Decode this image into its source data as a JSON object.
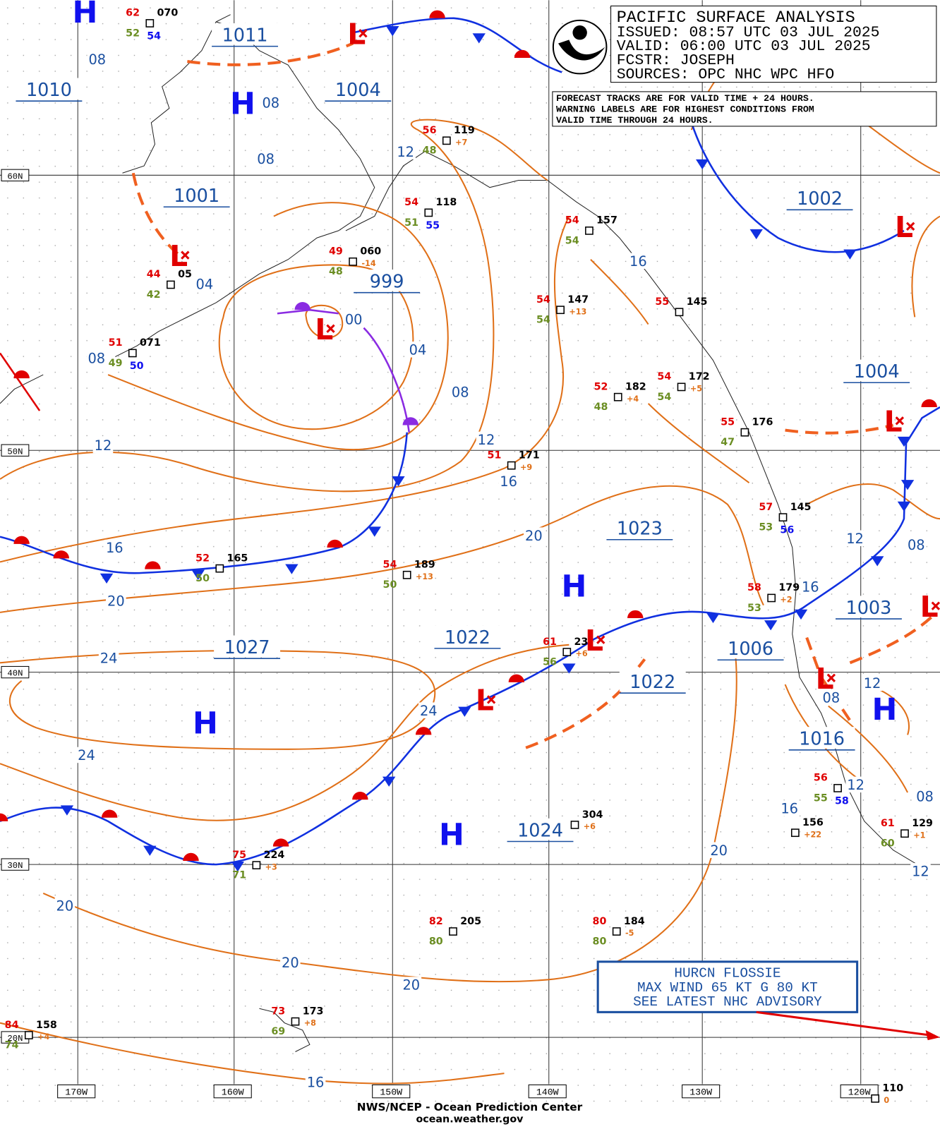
{
  "header": {
    "title": "PACIFIC SURFACE ANALYSIS",
    "lines": [
      "ISSUED: 08:57 UTC 03 JUL 2025",
      "VALID:  06:00 UTC 03 JUL 2025",
      "FCSTR:  JOSEPH",
      "SOURCES: OPC NHC WPC HFO"
    ]
  },
  "notice": [
    "FORECAST TRACKS ARE FOR VALID TIME + 24 HOURS.",
    "WARNING LABELS ARE FOR HIGHEST CONDITIONS FROM",
    "VALID TIME THROUGH 24 HOURS."
  ],
  "symbols": {
    "high": "H",
    "low": "L"
  },
  "pressure_centers": [
    "1011",
    "1010",
    "1004",
    "1001",
    "999",
    "1002",
    "1004",
    "1023",
    "1003",
    "1022",
    "1027",
    "1006",
    "1022",
    "1016",
    "1024"
  ],
  "isobar_labels": [
    "08",
    "08",
    "08",
    "12",
    "04",
    "00",
    "04",
    "08",
    "08",
    "12",
    "12",
    "16",
    "16",
    "16",
    "20",
    "20",
    "24",
    "24",
    "24",
    "12",
    "08",
    "16",
    "12",
    "08",
    "12",
    "08",
    "16",
    "12",
    "20",
    "20",
    "20",
    "20",
    "16"
  ],
  "latitudes": [
    "60N",
    "50N",
    "40N",
    "30N",
    "20N"
  ],
  "longitudes": [
    "170W",
    "160W",
    "150W",
    "140W",
    "130W",
    "120W"
  ],
  "stations": [
    {
      "temp": "62",
      "dewpoint": "52",
      "pressure": "070",
      "sst": "54"
    },
    {
      "temp": "49",
      "dewpoint": "48",
      "pressure": "060",
      "tendency": "-14"
    },
    {
      "temp": "44",
      "dewpoint": "42",
      "pressure": "05"
    },
    {
      "temp": "51",
      "dewpoint": "49",
      "pressure": "071",
      "sst": "50"
    },
    {
      "temp": "56",
      "dewpoint": "48",
      "pressure": "119",
      "tendency": "+7"
    },
    {
      "temp": "54",
      "dewpoint": "51",
      "pressure": "118",
      "sst": "55"
    },
    {
      "temp": "54",
      "dewpoint": "54",
      "pressure": "157"
    },
    {
      "temp": "54",
      "dewpoint": "54",
      "pressure": "147",
      "tendency": "+13"
    },
    {
      "temp": "55",
      "pressure": "145"
    },
    {
      "temp": "52",
      "dewpoint": "48",
      "pressure": "182",
      "tendency": "+4"
    },
    {
      "temp": "54",
      "dewpoint": "54",
      "pressure": "172",
      "tendency": "+5"
    },
    {
      "temp": "55",
      "dewpoint": "47",
      "pressure": "176"
    },
    {
      "temp": "51",
      "pressure": "171",
      "tendency": "+9"
    },
    {
      "temp": "57",
      "dewpoint": "53",
      "pressure": "145",
      "sst": "56"
    },
    {
      "temp": "54",
      "dewpoint": "50",
      "pressure": "189",
      "tendency": "+13"
    },
    {
      "temp": "52",
      "dewpoint": "50",
      "pressure": "165"
    },
    {
      "temp": "58",
      "dewpoint": "53",
      "pressure": "179",
      "tendency": "+2"
    },
    {
      "temp": "61",
      "dewpoint": "56",
      "pressure": "23",
      "tendency": "+6"
    },
    {
      "temp": "75",
      "dewpoint": "71",
      "pressure": "224",
      "tendency": "+3"
    },
    {
      "pressure": "304",
      "tendency": "+6"
    },
    {
      "temp": "56",
      "dewpoint": "55",
      "sst": "58"
    },
    {
      "pressure": "156",
      "tendency": "+22"
    },
    {
      "temp": "61",
      "dewpoint": "60",
      "pressure": "129",
      "tendency": "+1"
    },
    {
      "temp": "82",
      "dewpoint": "80",
      "pressure": "205"
    },
    {
      "temp": "80",
      "dewpoint": "80",
      "pressure": "184",
      "tendency": "-5"
    },
    {
      "temp": "73",
      "dewpoint": "69",
      "pressure": "173",
      "tendency": "+8"
    },
    {
      "temp": "84",
      "dewpoint": "74",
      "pressure": "158",
      "tendency": "+4"
    },
    {
      "pressure": "110",
      "tendency": "0"
    }
  ],
  "advisory": [
    "HURCN FLOSSIE",
    "MAX WIND 65 KT G 80 KT",
    "SEE LATEST NHC ADVISORY"
  ],
  "footer": {
    "agency": "NWS/NCEP - Ocean Prediction Center",
    "website": "ocean.weather.gov"
  }
}
